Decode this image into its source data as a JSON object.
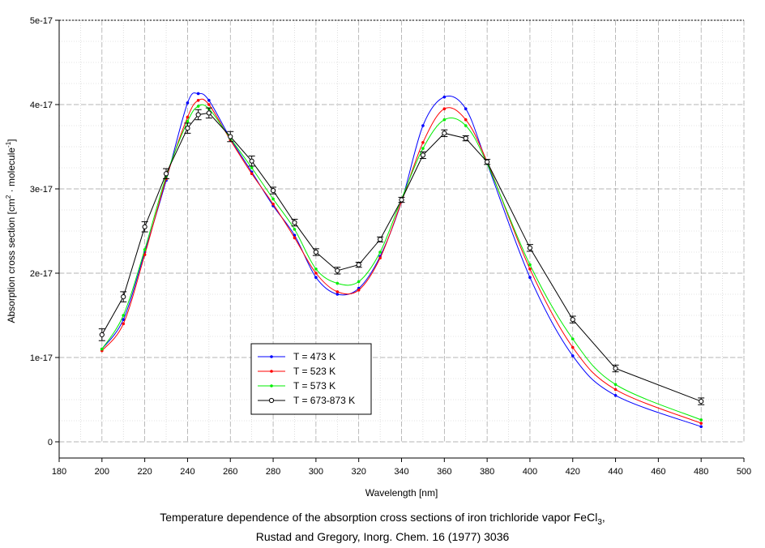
{
  "chart_data": {
    "type": "line",
    "xlabel": "Wavelength [nm]",
    "ylabel_parts": [
      "Absorption cross section [cm",
      "2",
      " · molecule",
      "-1",
      "]"
    ],
    "xlim": [
      180,
      500
    ],
    "ylim": [
      0,
      5e-17
    ],
    "xticks": [
      180,
      200,
      220,
      240,
      260,
      280,
      300,
      320,
      340,
      360,
      380,
      400,
      420,
      440,
      460,
      480,
      500
    ],
    "yticks": [
      {
        "value": 0,
        "label": "0"
      },
      {
        "value": 1e-17,
        "label": "1e-17"
      },
      {
        "value": 2e-17,
        "label": "2e-17"
      },
      {
        "value": 3e-17,
        "label": "3e-17"
      },
      {
        "value": 4e-17,
        "label": "4e-17"
      },
      {
        "value": 5e-17,
        "label": "5e-17"
      }
    ],
    "grid": true,
    "legend_position": "lower-left",
    "series": [
      {
        "name": "T = 473 K",
        "color": "#0000ff",
        "marker": "dot",
        "x": [
          200,
          210,
          220,
          230,
          240,
          245,
          250,
          260,
          270,
          280,
          290,
          300,
          310,
          320,
          330,
          340,
          350,
          360,
          370,
          380,
          400,
          420,
          440,
          480
        ],
        "y": [
          1.1e-17,
          1.45e-17,
          2.25e-17,
          3.1e-17,
          4.02e-17,
          4.13e-17,
          4.05e-17,
          3.6e-17,
          3.2e-17,
          2.8e-17,
          2.45e-17,
          1.95e-17,
          1.75e-17,
          1.82e-17,
          2.2e-17,
          2.85e-17,
          3.75e-17,
          4.09e-17,
          3.95e-17,
          3.3e-17,
          1.95e-17,
          1.02e-17,
          5.5e-18,
          1.8e-18
        ]
      },
      {
        "name": "T = 523 K",
        "color": "#ff0000",
        "marker": "dot",
        "x": [
          200,
          210,
          220,
          230,
          240,
          245,
          250,
          260,
          270,
          280,
          290,
          300,
          310,
          320,
          330,
          340,
          350,
          360,
          370,
          380,
          400,
          420,
          440,
          480
        ],
        "y": [
          1.08e-17,
          1.4e-17,
          2.22e-17,
          3.12e-17,
          3.85e-17,
          4.05e-17,
          4e-17,
          3.58e-17,
          3.18e-17,
          2.82e-17,
          2.42e-17,
          2e-17,
          1.78e-17,
          1.8e-17,
          2.18e-17,
          2.85e-17,
          3.55e-17,
          3.95e-17,
          3.82e-17,
          3.32e-17,
          2.05e-17,
          1.12e-17,
          6.2e-18,
          2.2e-18
        ]
      },
      {
        "name": "T = 573 K",
        "color": "#00ee00",
        "marker": "dot",
        "x": [
          200,
          210,
          220,
          230,
          240,
          245,
          250,
          260,
          270,
          280,
          290,
          300,
          310,
          320,
          330,
          340,
          350,
          360,
          370,
          380,
          400,
          420,
          440,
          480
        ],
        "y": [
          1.1e-17,
          1.5e-17,
          2.28e-17,
          3.15e-17,
          3.8e-17,
          3.98e-17,
          3.95e-17,
          3.6e-17,
          3.25e-17,
          2.88e-17,
          2.52e-17,
          2.05e-17,
          1.88e-17,
          1.9e-17,
          2.25e-17,
          2.88e-17,
          3.48e-17,
          3.82e-17,
          3.75e-17,
          3.3e-17,
          2.1e-17,
          1.22e-17,
          6.8e-18,
          2.6e-18
        ]
      },
      {
        "name": "T = 673-873 K",
        "color": "#000000",
        "marker": "open-circle-errorbar",
        "x": [
          200,
          210,
          220,
          230,
          240,
          245,
          250,
          260,
          270,
          280,
          290,
          300,
          310,
          320,
          330,
          340,
          350,
          360,
          370,
          380,
          400,
          420,
          440,
          480
        ],
        "y": [
          1.27e-17,
          1.72e-17,
          2.55e-17,
          3.18e-17,
          3.72e-17,
          3.88e-17,
          3.9e-17,
          3.62e-17,
          3.33e-17,
          2.98e-17,
          2.6e-17,
          2.25e-17,
          2.03e-17,
          2.1e-17,
          2.4e-17,
          2.87e-17,
          3.4e-17,
          3.66e-17,
          3.6e-17,
          3.32e-17,
          2.3e-17,
          1.45e-17,
          8.7e-18,
          4.8e-18
        ],
        "err": [
          7e-19,
          6e-19,
          6e-19,
          6e-19,
          6e-19,
          6e-19,
          6e-19,
          6e-19,
          6e-19,
          4e-19,
          4e-19,
          4e-19,
          4e-19,
          3e-19,
          3e-19,
          3e-19,
          4e-19,
          4e-19,
          3e-19,
          3e-19,
          4e-19,
          4e-19,
          4e-19,
          4e-19
        ]
      }
    ]
  },
  "caption": {
    "line1_prefix": "Temperature dependence of the absorption cross sections of iron trichloride vapor FeCl",
    "line1_sub": "3",
    "line1_suffix": ",",
    "line2": "Rustad and Gregory, Inorg. Chem. 16 (1977) 3036"
  }
}
